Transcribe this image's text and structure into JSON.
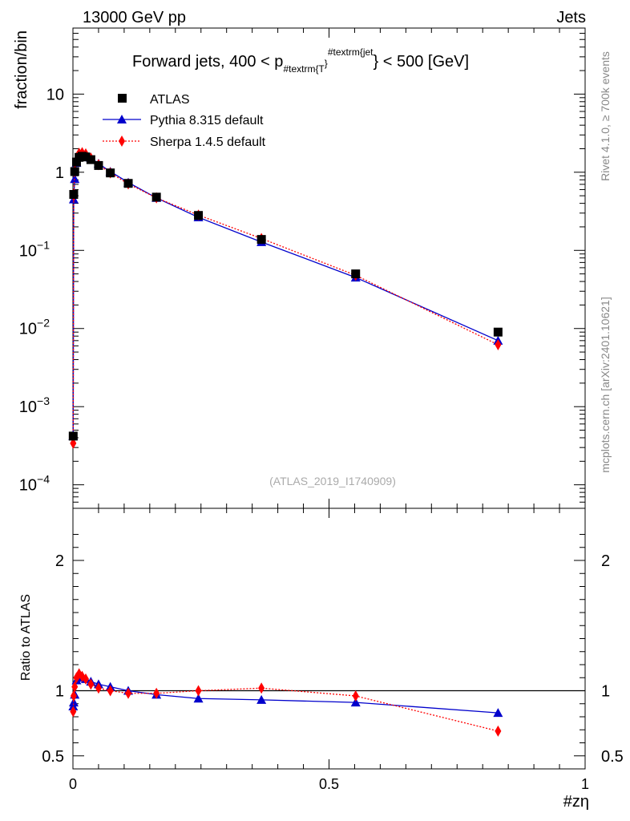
{
  "header": {
    "left": "13000 GeV pp",
    "right": "Jets"
  },
  "side_labels": {
    "rivet": "Rivet 4.1.0, ≥ 700k events",
    "mcplots": "mcplots.cern.ch [arXiv:2401.10621]"
  },
  "chart_data": {
    "type": "line",
    "title_main": "Forward jets, 400 < p",
    "title_sub": "#textrm{T",
    "title_sup": "#textrm{jet",
    "title_mid": "}",
    "title_end": "} < 500 [GeV]",
    "watermark": "(ATLAS_2019_I1740909)",
    "ylabel": "fraction/bin",
    "ratio_ylabel": "Ratio to ATLAS",
    "xlabel": "#zη",
    "xlim": [
      0,
      1
    ],
    "ylim": [
      5e-05,
      70
    ],
    "yscale": "log",
    "ratio_ylim": [
      0.4,
      2.4
    ],
    "x_ticks": [
      {
        "value": 0,
        "label": "0"
      },
      {
        "value": 0.5,
        "label": "0.5"
      },
      {
        "value": 1,
        "label": "1"
      }
    ],
    "y_ticks": [
      {
        "value": 10,
        "label": "10",
        "exp": ""
      },
      {
        "value": 1,
        "label": "1",
        "exp": ""
      },
      {
        "value": 0.1,
        "label": "10",
        "exp": "−1"
      },
      {
        "value": 0.01,
        "label": "10",
        "exp": "−2"
      },
      {
        "value": 0.001,
        "label": "10",
        "exp": "−3"
      },
      {
        "value": 0.0001,
        "label": "10",
        "exp": "−4"
      }
    ],
    "ratio_ticks": [
      {
        "value": 2,
        "label": "2"
      },
      {
        "value": 1,
        "label": "1"
      },
      {
        "value": 0.5,
        "label": "0.5"
      }
    ],
    "series": [
      {
        "name": "ATLAS",
        "color": "#000000",
        "marker": "square",
        "x": [
          0.0005,
          0.0015,
          0.0035,
          0.007,
          0.012,
          0.018,
          0.025,
          0.035,
          0.05,
          0.073,
          0.108,
          0.163,
          0.245,
          0.368,
          0.552,
          0.83
        ],
        "y": [
          0.00042,
          0.52,
          1.02,
          1.35,
          1.55,
          1.6,
          1.57,
          1.45,
          1.22,
          0.98,
          0.72,
          0.48,
          0.28,
          0.138,
          0.05,
          0.009
        ],
        "ratio": [
          1,
          1,
          1,
          1,
          1,
          1,
          1,
          1,
          1,
          1,
          1,
          1,
          1,
          1,
          1,
          1
        ]
      },
      {
        "name": "Pythia 8.315 default",
        "color": "#0000cc",
        "marker": "triangle",
        "x": [
          0.0005,
          0.0015,
          0.0035,
          0.007,
          0.012,
          0.018,
          0.025,
          0.035,
          0.05,
          0.073,
          0.108,
          0.163,
          0.245,
          0.368,
          0.552,
          0.83
        ],
        "y": [
          0.00042,
          0.45,
          0.82,
          1.32,
          1.62,
          1.7,
          1.66,
          1.53,
          1.29,
          1.02,
          0.74,
          0.47,
          0.265,
          0.128,
          0.045,
          0.007
        ],
        "ratio": [
          0.88,
          0.91,
          0.97,
          1.08,
          1.12,
          1.1,
          1.09,
          1.07,
          1.05,
          1.03,
          1.0,
          0.97,
          0.94,
          0.93,
          0.91,
          0.83
        ]
      },
      {
        "name": "Sherpa 1.4.5 default",
        "color": "#ff0000",
        "marker": "diamond",
        "x": [
          0.0005,
          0.0015,
          0.0035,
          0.007,
          0.012,
          0.018,
          0.025,
          0.035,
          0.05,
          0.073,
          0.108,
          0.163,
          0.245,
          0.368,
          0.552,
          0.83
        ],
        "y": [
          0.00034,
          0.5,
          1.05,
          1.45,
          1.75,
          1.78,
          1.72,
          1.52,
          1.25,
          0.98,
          0.71,
          0.47,
          0.283,
          0.142,
          0.048,
          0.0062
        ],
        "ratio": [
          0.84,
          0.96,
          1.03,
          1.1,
          1.13,
          1.11,
          1.09,
          1.05,
          1.02,
          1.0,
          0.98,
          0.98,
          1.0,
          1.02,
          0.96,
          0.69
        ]
      }
    ]
  }
}
